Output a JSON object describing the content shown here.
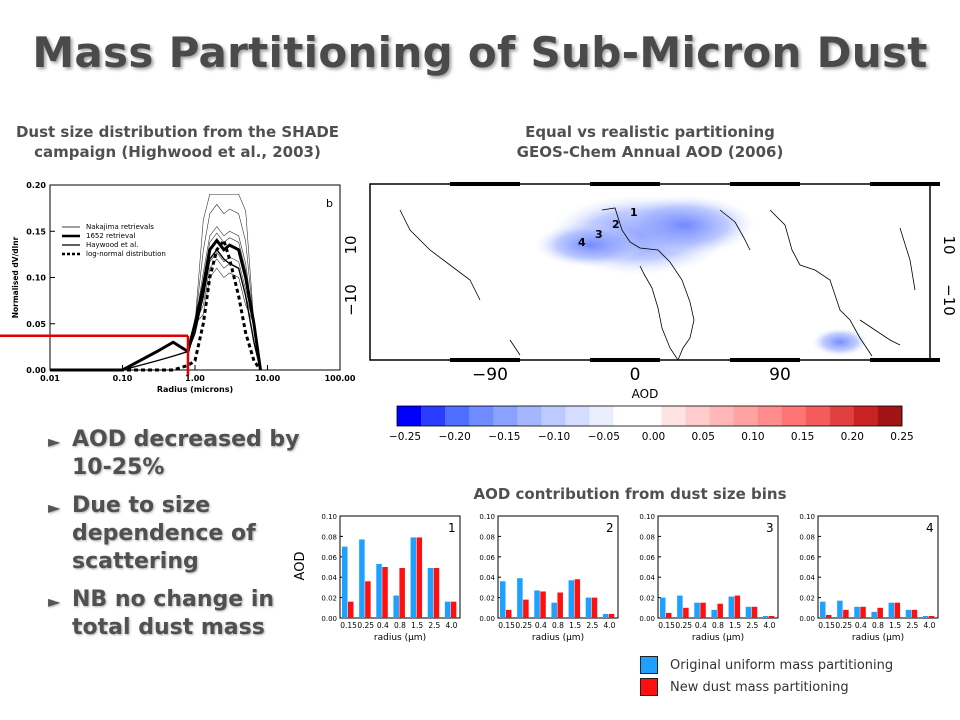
{
  "title": "Mass Partitioning of Sub-Micron Dust",
  "captions": {
    "left": [
      "Dust size distribution from the SHADE",
      "campaign (Highwood et al., 2003)"
    ],
    "map": [
      "Equal vs realistic partitioning",
      "GEOS-Chem Annual AOD (2006)"
    ],
    "bins": "AOD contribution from dust size bins"
  },
  "bullets": [
    "AOD decreased by 10-25%",
    "Due to size dependence of scattering",
    "NB no change in total dust mass"
  ],
  "legend": {
    "items": [
      {
        "label": "Original uniform mass partitioning",
        "color": "#1ea0ff"
      },
      {
        "label": "New dust mass partitioning",
        "color": "#ff1010"
      }
    ]
  },
  "chart_data": [
    {
      "type": "line",
      "panel_label": "b",
      "xlabel": "Radius (microns)",
      "ylabel": "Normalised dV/dlnr",
      "xscale": "log",
      "xlim": [
        0.01,
        100
      ],
      "ylim": [
        0,
        0.2
      ],
      "xticks": [
        "0.01",
        "0.10",
        "1.00",
        "10.00",
        "100.00"
      ],
      "yticks": [
        "0.00",
        "0.05",
        "0.10",
        "0.15",
        "0.20"
      ],
      "legend": [
        "Nakajima retrievals",
        "1652 retrieval",
        "Haywood et al.",
        "log-normal distribution"
      ],
      "series": [
        {
          "name": "1652 retrieval",
          "x": [
            0.01,
            0.1,
            0.3,
            0.5,
            0.8,
            1.0,
            1.3,
            1.6,
            2.0,
            2.5,
            3.0,
            4.0,
            5.0,
            6.5,
            8.0
          ],
          "y": [
            0.0,
            0.0,
            0.02,
            0.03,
            0.02,
            0.05,
            0.09,
            0.13,
            0.14,
            0.13,
            0.135,
            0.13,
            0.1,
            0.05,
            0.0
          ]
        },
        {
          "name": "Haywood et al.",
          "x": [
            0.01,
            0.1,
            0.3,
            0.5,
            0.8,
            1.0,
            1.3,
            1.6,
            2.0,
            2.5,
            3.0,
            4.0,
            5.0,
            6.5,
            8.0
          ],
          "y": [
            0.0,
            0.0,
            0.01,
            0.015,
            0.02,
            0.04,
            0.08,
            0.12,
            0.13,
            0.12,
            0.115,
            0.11,
            0.08,
            0.03,
            0.0
          ]
        },
        {
          "name": "log-normal distribution",
          "x": [
            0.01,
            0.1,
            0.3,
            0.5,
            0.8,
            1.0,
            1.3,
            1.6,
            2.0,
            2.5,
            3.0,
            4.0,
            5.0,
            6.5,
            8.0
          ],
          "y": [
            0.0,
            0.0,
            0.0,
            0.0,
            0.005,
            0.01,
            0.05,
            0.1,
            0.13,
            0.14,
            0.12,
            0.08,
            0.04,
            0.01,
            0.0
          ]
        }
      ],
      "annotation": {
        "x": 0.8,
        "y": 0.037
      }
    },
    {
      "type": "heatmap",
      "xlabel": "AOD",
      "xticks": [
        "−90",
        "0",
        "90"
      ],
      "yticks": [
        "10",
        "−10"
      ],
      "yticks_right": [
        "10",
        "−10"
      ],
      "region_labels": [
        "1",
        "2",
        "3",
        "4"
      ],
      "colorbar": {
        "ticks": [
          "−0.25",
          "−0.20",
          "−0.15",
          "−0.10",
          "−0.05",
          "0.00",
          "0.05",
          "0.10",
          "0.15",
          "0.20",
          "0.25"
        ],
        "colors": [
          "#0000ff",
          "#2a3cff",
          "#4e6eff",
          "#6e8cff",
          "#8aa2ff",
          "#a3b6ff",
          "#bccaff",
          "#d4dcff",
          "#eaeeff",
          "#ffffff",
          "#ffffff",
          "#ffe2e2",
          "#ffcccc",
          "#ffb7b7",
          "#ffa2a2",
          "#ff8c8c",
          "#ff7474",
          "#f45c5c",
          "#e04040",
          "#c82222",
          "#a01414"
        ]
      }
    },
    {
      "type": "bar",
      "ylabel": "AOD",
      "xlabel": "radius (μm)",
      "ylim": [
        0,
        0.1
      ],
      "yticks": [
        "0.00",
        "0.02",
        "0.04",
        "0.06",
        "0.08",
        "0.10"
      ],
      "categories": [
        "0.15",
        "0.25",
        "0.4",
        "0.8",
        "1.5",
        "2.5",
        "4.0"
      ],
      "panels": [
        {
          "label": "1",
          "series": [
            {
              "values": [
                0.07,
                0.077,
                0.053,
                0.022,
                0.079,
                0.049,
                0.016
              ]
            },
            {
              "values": [
                0.016,
                0.036,
                0.05,
                0.049,
                0.079,
                0.049,
                0.016
              ]
            }
          ]
        },
        {
          "label": "2",
          "series": [
            {
              "values": [
                0.036,
                0.039,
                0.027,
                0.015,
                0.037,
                0.02,
                0.004
              ]
            },
            {
              "values": [
                0.008,
                0.018,
                0.026,
                0.025,
                0.038,
                0.02,
                0.004
              ]
            }
          ]
        },
        {
          "label": "3",
          "series": [
            {
              "values": [
                0.02,
                0.022,
                0.015,
                0.008,
                0.021,
                0.011,
                0.002
              ]
            },
            {
              "values": [
                0.005,
                0.01,
                0.015,
                0.014,
                0.022,
                0.011,
                0.002
              ]
            }
          ]
        },
        {
          "label": "4",
          "series": [
            {
              "values": [
                0.016,
                0.017,
                0.011,
                0.006,
                0.015,
                0.008,
                0.002
              ]
            },
            {
              "values": [
                0.003,
                0.008,
                0.011,
                0.01,
                0.015,
                0.008,
                0.002
              ]
            }
          ]
        }
      ]
    }
  ]
}
